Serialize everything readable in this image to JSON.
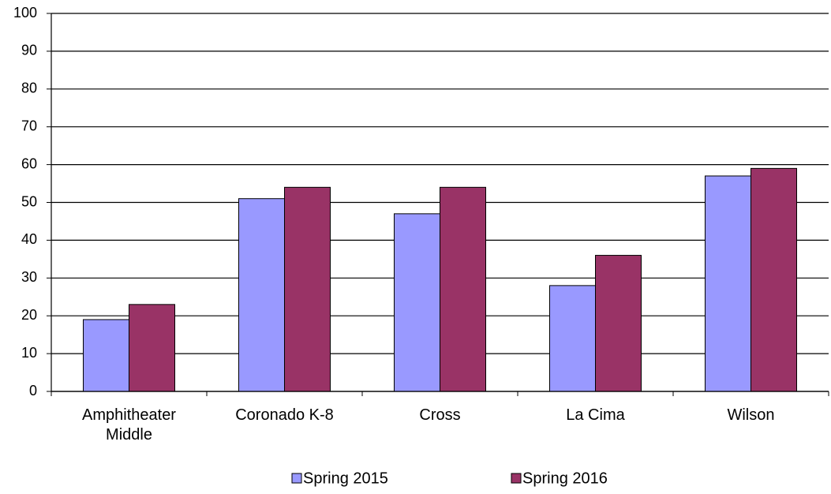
{
  "chart_data": {
    "type": "bar",
    "categories": [
      "Amphitheater Middle",
      "Coronado K-8",
      "Cross",
      "La Cima",
      "Wilson"
    ],
    "series": [
      {
        "name": "Spring 2015",
        "color": "#9999ff",
        "values": [
          19,
          51,
          47,
          28,
          57
        ]
      },
      {
        "name": "Spring 2016",
        "color": "#993366",
        "values": [
          23,
          54,
          54,
          36,
          59
        ]
      }
    ],
    "ylim": [
      0,
      100
    ],
    "yticks": [
      0,
      10,
      20,
      30,
      40,
      50,
      60,
      70,
      80,
      90,
      100
    ],
    "grid": true,
    "legend": "bottom"
  }
}
